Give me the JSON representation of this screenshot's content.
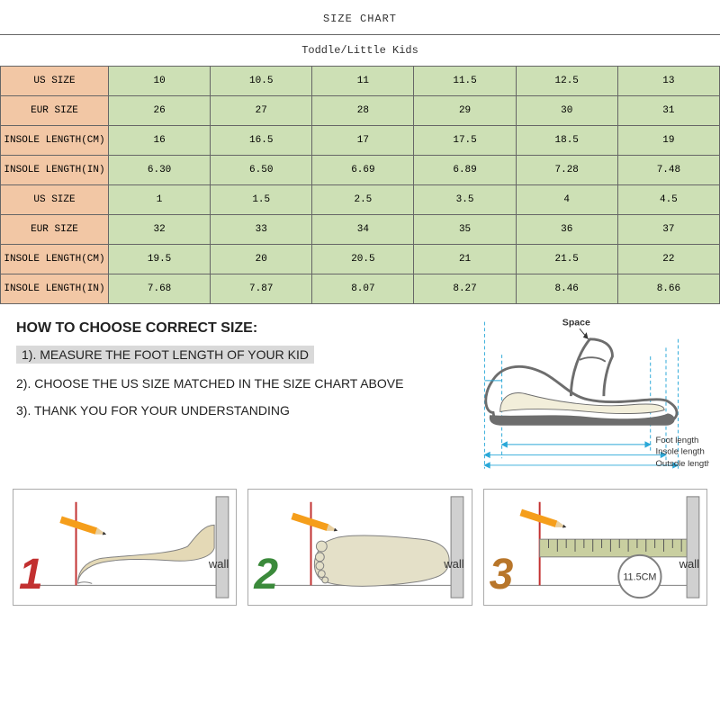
{
  "title": "SIZE CHART",
  "subtitle": "Toddle/Little Kids",
  "table": {
    "label_bg": "#f2c7a5",
    "data_bg": "#cde0b5",
    "border_color": "#666666",
    "text_color": "#333333",
    "row_labels": [
      "US SIZE",
      "EUR SIZE",
      "INSOLE LENGTH(CM)",
      "INSOLE LENGTH(IN)",
      "US SIZE",
      "EUR SIZE",
      "INSOLE LENGTH(CM)",
      "INSOLE LENGTH(IN)"
    ],
    "rows": [
      [
        "10",
        "10.5",
        "11",
        "11.5",
        "12.5",
        "13"
      ],
      [
        "26",
        "27",
        "28",
        "29",
        "30",
        "31"
      ],
      [
        "16",
        "16.5",
        "17",
        "17.5",
        "18.5",
        "19"
      ],
      [
        "6.30",
        "6.50",
        "6.69",
        "6.89",
        "7.28",
        "7.48"
      ],
      [
        "1",
        "1.5",
        "2.5",
        "3.5",
        "4",
        "4.5"
      ],
      [
        "32",
        "33",
        "34",
        "35",
        "36",
        "37"
      ],
      [
        "19.5",
        "20",
        "20.5",
        "21",
        "21.5",
        "22"
      ],
      [
        "7.68",
        "7.87",
        "8.07",
        "8.27",
        "8.46",
        "8.66"
      ]
    ]
  },
  "instructions": {
    "title": "HOW TO CHOOSE CORRECT SIZE:",
    "step1": "1). MEASURE THE FOOT LENGTH OF YOUR KID",
    "step2": "2). CHOOSE THE US SIZE MATCHED IN THE SIZE CHART ABOVE",
    "step3": "3). THANK YOU FOR YOUR UNDERSTANDING"
  },
  "shoe_diagram": {
    "space_label": "Space",
    "foot_label": "Foot length",
    "insole_label": "Insole length",
    "outsole_label": "Outsole length",
    "outline_color": "#6d6d6d",
    "insole_color": "#f2eeda",
    "guide_color": "#2aa8d8",
    "text_color": "#333333"
  },
  "measure_steps": {
    "wall_label": "wall",
    "pencil_color": "#f59e1b",
    "ruler_color": "#9aa36b",
    "foot_fill": "#e4d9b6",
    "foot_top_fill": "#e4e0c8",
    "wall_color": "#d0d0d0",
    "wall_line": "#808080",
    "circle_text": "11.5CM",
    "circle_border": "#808080",
    "items": [
      {
        "num": "1",
        "color": "#c23030"
      },
      {
        "num": "2",
        "color": "#3b8a3b"
      },
      {
        "num": "3",
        "color": "#b8762a"
      }
    ]
  }
}
